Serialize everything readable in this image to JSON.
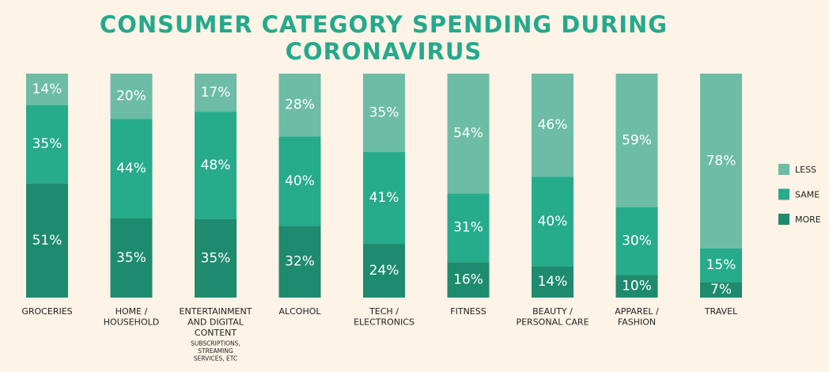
{
  "chart_data": {
    "type": "bar",
    "stacked": true,
    "title": "CONSUMER CATEGORY SPENDING DURING CORONAVIRUS",
    "categories": [
      [
        "GROCERIES"
      ],
      [
        "HOME /",
        "HOUSEHOLD"
      ],
      [
        "ENTERTAINMENT",
        "AND DIGITAL",
        "CONTENT"
      ],
      [
        "ALCOHOL"
      ],
      [
        "TECH /",
        "ELECTRONICS"
      ],
      [
        "FITNESS"
      ],
      [
        "BEAUTY /",
        "PERSONAL CARE"
      ],
      [
        "APPAREL /",
        "FASHION"
      ],
      [
        "TRAVEL"
      ]
    ],
    "category_notes": [
      [],
      [],
      [
        "SUBSCRIPTIONS,",
        "STREAMING",
        "SERVICES, ETC"
      ],
      [],
      [],
      [],
      [],
      [],
      []
    ],
    "series": [
      {
        "name": "MORE",
        "color": "#1e8a6e",
        "values": [
          51,
          35,
          35,
          32,
          24,
          16,
          14,
          10,
          7
        ]
      },
      {
        "name": "SAME",
        "color": "#26ab8b",
        "values": [
          35,
          44,
          48,
          40,
          41,
          31,
          40,
          30,
          15
        ]
      },
      {
        "name": "LESS",
        "color": "#6dbca5",
        "values": [
          14,
          20,
          17,
          28,
          35,
          54,
          46,
          59,
          78
        ]
      }
    ],
    "legend_order": [
      "LESS",
      "SAME",
      "MORE"
    ],
    "value_suffix": "%",
    "legend_position": "right",
    "grid": false
  }
}
